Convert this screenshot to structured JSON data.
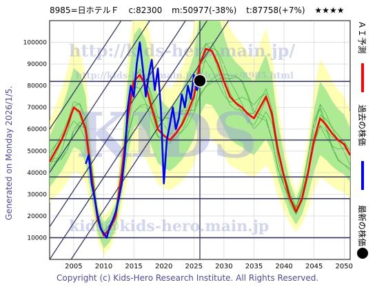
{
  "header": {
    "code_name": "8985=日ホテルＦ",
    "current": "c:82300",
    "min": "m:50977(-38%)",
    "target": "t:87758(+7%)",
    "stars": "★★★★"
  },
  "side_text": "Generated on Monday 2026/1/5.",
  "legend": {
    "ai_forecast": "ＡＩ予測",
    "past_price": "過去の株価",
    "latest_price": "最新の株価"
  },
  "watermarks": [
    "http://kids-hero.main.jp/",
    "http://kids-hero.main.jp/pics/coc/8985.html",
    "KIDS",
    "kids@kids-hero.main.jp"
  ],
  "copyright": "Copyright (c) Kids-Hero Research Institute. All Rights Reserved.",
  "colors": {
    "forecast": "#ff0000",
    "past": "#0000ff",
    "latest": "#000000",
    "band_green": "#99e68a",
    "band_yellow": "#ffff99",
    "channel": "#333366",
    "grid": "#cccccc"
  },
  "chart_data": {
    "type": "line",
    "x_range": [
      2001,
      2051
    ],
    "y_range": [
      0,
      110000
    ],
    "x_ticks": [
      2005,
      2010,
      2015,
      2020,
      2025,
      2030,
      2035,
      2040,
      2045,
      2050
    ],
    "y_ticks": [
      10000,
      20000,
      30000,
      40000,
      50000,
      60000,
      70000,
      80000,
      90000,
      100000
    ],
    "horizontal_levels": [
      10000,
      28000,
      38000,
      55000,
      82000
    ],
    "vertical_marker_year": 2026,
    "latest": {
      "year": 2026,
      "value": 82300
    },
    "series": [
      {
        "key": "ai_forecast",
        "points": [
          [
            2001,
            45000
          ],
          [
            2002,
            50000
          ],
          [
            2003,
            55000
          ],
          [
            2004,
            62000
          ],
          [
            2005,
            70000
          ],
          [
            2006,
            68000
          ],
          [
            2007,
            60000
          ],
          [
            2008,
            38000
          ],
          [
            2009,
            18000
          ],
          [
            2010,
            11000
          ],
          [
            2011,
            14000
          ],
          [
            2012,
            20000
          ],
          [
            2013,
            40000
          ],
          [
            2014,
            65000
          ],
          [
            2015,
            82000
          ],
          [
            2016,
            85000
          ],
          [
            2017,
            80000
          ],
          [
            2018,
            70000
          ],
          [
            2019,
            60000
          ],
          [
            2020,
            57000
          ],
          [
            2021,
            55000
          ],
          [
            2022,
            58000
          ],
          [
            2023,
            62000
          ],
          [
            2024,
            68000
          ],
          [
            2025,
            75000
          ],
          [
            2026,
            90000
          ],
          [
            2027,
            97000
          ],
          [
            2028,
            96000
          ],
          [
            2029,
            90000
          ],
          [
            2030,
            82000
          ],
          [
            2031,
            75000
          ],
          [
            2032,
            72000
          ],
          [
            2033,
            70000
          ],
          [
            2034,
            67000
          ],
          [
            2035,
            65000
          ],
          [
            2036,
            70000
          ],
          [
            2037,
            75000
          ],
          [
            2038,
            67000
          ],
          [
            2039,
            50000
          ],
          [
            2040,
            38000
          ],
          [
            2041,
            28000
          ],
          [
            2042,
            22000
          ],
          [
            2043,
            28000
          ],
          [
            2044,
            40000
          ],
          [
            2045,
            55000
          ],
          [
            2046,
            65000
          ],
          [
            2047,
            62000
          ],
          [
            2048,
            58000
          ],
          [
            2049,
            55000
          ],
          [
            2050,
            53000
          ],
          [
            2051,
            48000
          ]
        ]
      },
      {
        "key": "past_price",
        "points": [
          [
            2007,
            44000
          ],
          [
            2007.5,
            48000
          ],
          [
            2008,
            35000
          ],
          [
            2008.5,
            28000
          ],
          [
            2009,
            20000
          ],
          [
            2009.5,
            14000
          ],
          [
            2010,
            12000
          ],
          [
            2010.5,
            10000
          ],
          [
            2011,
            15000
          ],
          [
            2011.5,
            18000
          ],
          [
            2012,
            22000
          ],
          [
            2012.5,
            28000
          ],
          [
            2013,
            35000
          ],
          [
            2013.5,
            48000
          ],
          [
            2014,
            70000
          ],
          [
            2014.5,
            80000
          ],
          [
            2015,
            75000
          ],
          [
            2015.5,
            90000
          ],
          [
            2016,
            100000
          ],
          [
            2016.5,
            88000
          ],
          [
            2017,
            75000
          ],
          [
            2017.5,
            85000
          ],
          [
            2018,
            92000
          ],
          [
            2018.5,
            78000
          ],
          [
            2019,
            88000
          ],
          [
            2019.5,
            70000
          ],
          [
            2020,
            35000
          ],
          [
            2020.5,
            55000
          ],
          [
            2021,
            62000
          ],
          [
            2021.5,
            70000
          ],
          [
            2022,
            60000
          ],
          [
            2022.5,
            65000
          ],
          [
            2023,
            76000
          ],
          [
            2023.5,
            70000
          ],
          [
            2024,
            80000
          ],
          [
            2024.5,
            74000
          ],
          [
            2025,
            85000
          ],
          [
            2025.5,
            78000
          ],
          [
            2026,
            82300
          ]
        ]
      }
    ]
  }
}
